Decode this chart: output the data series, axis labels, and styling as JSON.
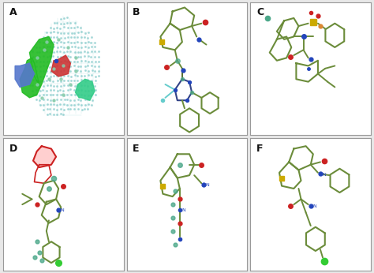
{
  "labels": [
    "A",
    "B",
    "C",
    "D",
    "E",
    "F"
  ],
  "background_color": "#e8e8e8",
  "panel_background": "#ffffff",
  "label_fontsize": 9,
  "label_color": "#111111",
  "label_fontweight": "bold",
  "border_color": "#999999",
  "border_width": 0.8,
  "figsize": [
    4.74,
    3.46
  ],
  "dpi": 100,
  "green_stick": "#6b8c3a",
  "dark_green_stick": "#556b2f",
  "atom_red": "#cc2222",
  "atom_blue": "#2244bb",
  "atom_yellow": "#ccaa00",
  "atom_cyan": "#66cccc",
  "atom_teal": "#4ca88a",
  "atom_green_small": "#44bb44",
  "atom_orange": "#dd8833",
  "mesh_color": "#88cccc",
  "green_blob": "#22bb22",
  "blue_blob": "#5577cc",
  "red_blob": "#cc3333"
}
